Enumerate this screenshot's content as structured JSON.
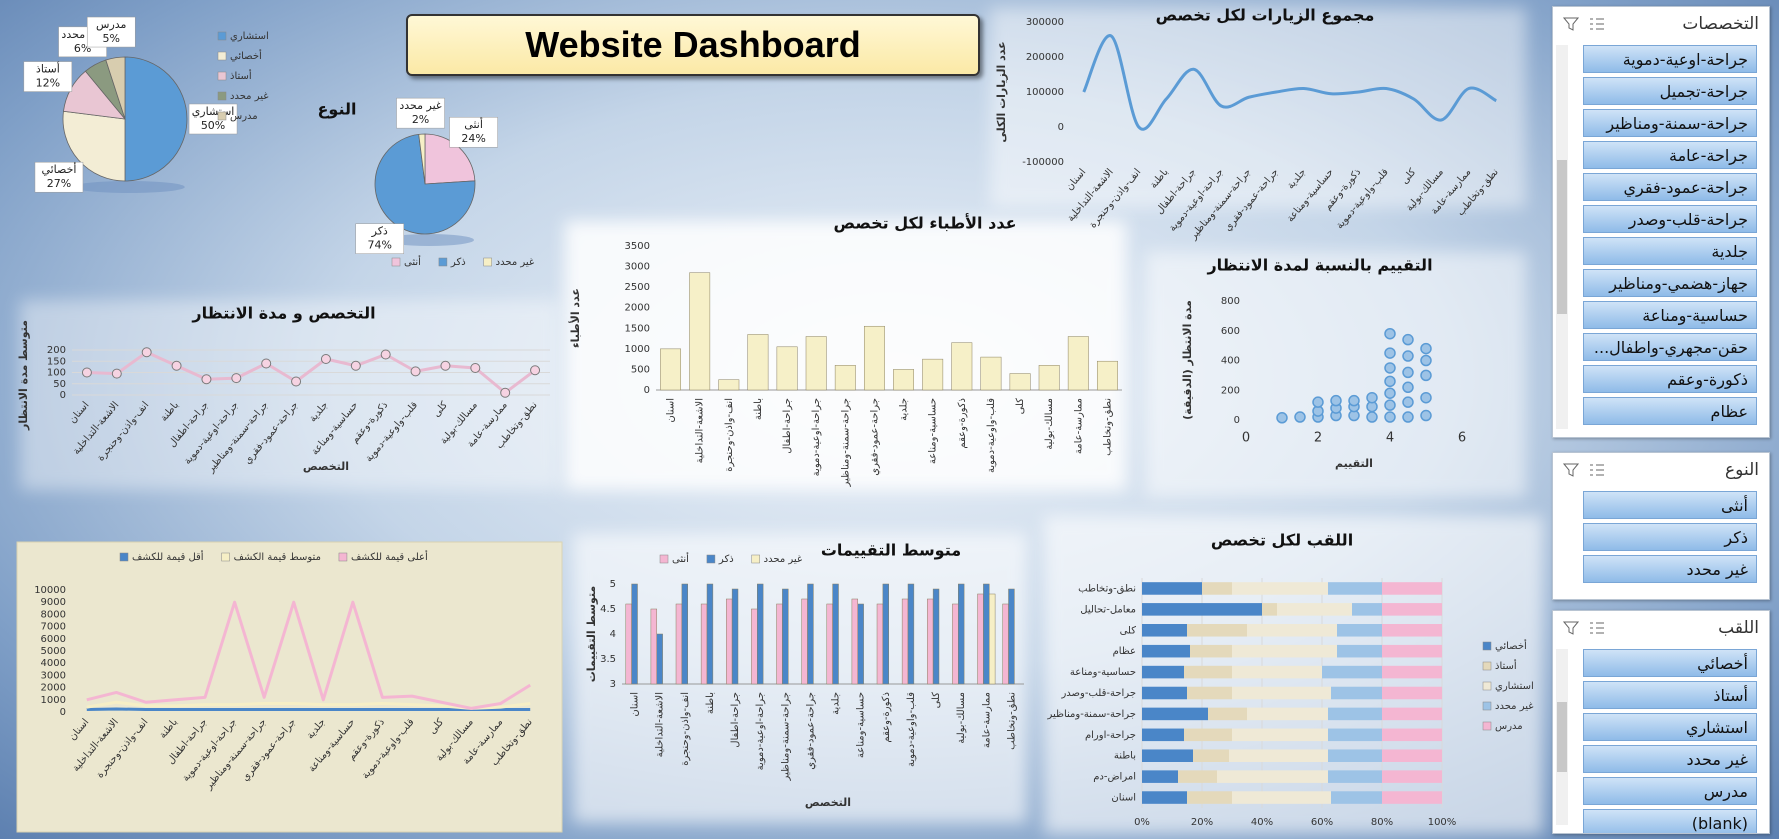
{
  "title": "Website Dashboard",
  "chart_data": [
    {
      "type": "pie",
      "categories": [
        "استشاري",
        "أخصائي",
        "أستاذ",
        "غير محدد",
        "مدرس"
      ],
      "values": [
        50,
        27,
        12,
        6,
        5
      ],
      "value_labels": [
        "50%",
        "27%",
        "12%",
        "6%",
        "5%"
      ],
      "colors": [
        "#5b9bd5",
        "#f3edd5",
        "#e9c6d3",
        "#8b9a80",
        "#d8cdaf"
      ],
      "legend": "right"
    },
    {
      "type": "pie",
      "title": "النوع",
      "categories": [
        "أنثى",
        "ذكر",
        "غير محدد"
      ],
      "values": [
        24,
        74,
        2
      ],
      "value_labels": [
        "24%",
        "74%",
        "2%"
      ],
      "colors": [
        "#f0c4dc",
        "#5b9bd5",
        "#f6efc6"
      ],
      "legend": "bottom"
    },
    {
      "type": "line",
      "title": "مجموع الزيارات لكل تخصص",
      "y_label": "عدد الزيارات الكلى",
      "smooth": true,
      "grid": false,
      "categories": [
        "اسنان",
        "الاشعة-التداخلية",
        "انف-واذن-وحنجرة",
        "باطنة",
        "جراحة-اطفال",
        "جراحة-اوعية-دموية",
        "جراحة-سمنة-ومناظير",
        "جراحة-عمود-فقري",
        "جلدية",
        "حساسية-ومناعة",
        "ذكورة-وعقم",
        "قلب-واوعية-دموية",
        "كلى",
        "مسالك-بولية",
        "ممارسة-عامة",
        "نطق-وتخاطب"
      ],
      "series": [
        {
          "name": "مجموع الزيارات",
          "color": "#5b9bd5",
          "values": [
            100000,
            260000,
            0,
            80000,
            165000,
            60000,
            85000,
            100000,
            110000,
            95000,
            100000,
            110000,
            80000,
            20000,
            110000,
            75000
          ]
        }
      ],
      "ylim": [
        -100000,
        300000
      ],
      "yticks": [
        -100000,
        0,
        100000,
        200000,
        300000
      ]
    },
    {
      "type": "bar",
      "title": "عدد الأطباء لكل تخصص",
      "y_label": "عدد الأطباء",
      "grid": false,
      "categories": [
        "اسنان",
        "الاشعة-التداخلية",
        "انف-واذن-وحنجرة",
        "باطنة",
        "جراحة-اطفال",
        "جراحة-اوعية-دموية",
        "جراحة-سمنة-ومناظير",
        "جراحة-عمود-فقري",
        "جلدية",
        "حساسية-ومناعة",
        "ذكورة-وعقم",
        "قلب-واوعية-دموية",
        "كلى",
        "مسالك-بولية",
        "ممارسة-عامة",
        "نطق-وتخاطب"
      ],
      "series": [
        {
          "name": "عدد الأطباء",
          "color": "#f6f0c8",
          "values": [
            1000,
            2850,
            250,
            1350,
            1050,
            1300,
            600,
            1550,
            500,
            750,
            1150,
            800,
            400,
            600,
            1300,
            700
          ]
        }
      ],
      "ylim": [
        0,
        3500
      ],
      "yticks": [
        0,
        500,
        1000,
        1500,
        2000,
        2500,
        3000,
        3500
      ]
    },
    {
      "type": "scatter",
      "title": "التقييم بالنسبة لمدة الانتظار",
      "x_label": "التقييم",
      "y_label": "مدة الانتظار (الدقيقة)",
      "grid": false,
      "series": [
        {
          "name": "مدة الانتظار",
          "color": "#9dc3e6",
          "x": [
            1,
            1.5,
            2,
            2,
            2,
            2.5,
            2.5,
            2.5,
            3,
            3,
            3,
            3.5,
            3.5,
            3.5,
            4,
            4,
            4,
            4,
            4,
            4,
            4,
            4.5,
            4.5,
            4.5,
            4.5,
            4.5,
            4.5,
            5,
            5,
            5,
            5,
            5
          ],
          "values": [
            15,
            20,
            20,
            60,
            120,
            30,
            80,
            130,
            30,
            90,
            130,
            20,
            90,
            150,
            20,
            100,
            180,
            260,
            350,
            450,
            580,
            20,
            120,
            220,
            320,
            430,
            540,
            30,
            150,
            300,
            400,
            480
          ]
        }
      ],
      "xlim": [
        0,
        6
      ],
      "xticks": [
        0,
        2,
        4,
        6
      ],
      "ylim": [
        0,
        800
      ],
      "yticks": [
        0,
        200,
        400,
        600,
        800
      ]
    },
    {
      "type": "line",
      "title": "التخصص و مدة الانتظار",
      "x_label": "التخصص",
      "y_label": "متوسط مدة الانتظار",
      "markers": true,
      "grid": true,
      "categories": [
        "اسنان",
        "الاشعة-التداخلية",
        "انف-واذن-وحنجرة",
        "باطنة",
        "جراحة-اطفال",
        "جراحة-اوعية-دموية",
        "جراحة-سمنة-ومناظير",
        "جراحة-عمود-فقري",
        "جلدية",
        "حساسية-ومناعة",
        "ذكورة-وعقم",
        "قلب-واوعية-دموية",
        "كلى",
        "مسالك-بولية",
        "ممارسة-عامة",
        "نطق-وتخاطب"
      ],
      "series": [
        {
          "name": "متوسط مدة الانتظار",
          "color": "#e8b9d0",
          "values": [
            100,
            95,
            190,
            130,
            70,
            75,
            140,
            60,
            160,
            130,
            180,
            105,
            130,
            120,
            10,
            110
          ]
        }
      ],
      "ylim": [
        0,
        200
      ],
      "yticks": [
        0,
        50,
        100,
        150,
        200
      ]
    },
    {
      "type": "line",
      "legend": "top",
      "grid": false,
      "categories": [
        "اسنان",
        "الاشعة-التداخلية",
        "انف-واذن-وحنجرة",
        "باطنة",
        "جراحة-اطفال",
        "جراحة-اوعية-دموية",
        "جراحة-سمنة-ومناظير",
        "جراحة-عمود-فقري",
        "جلدية",
        "حساسية-ومناعة",
        "ذكورة-وعقم",
        "قلب-واوعية-دموية",
        "كلى",
        "مسالك-بولية",
        "ممارسة-عامة",
        "نطق-وتخاطب"
      ],
      "series": [
        {
          "name": "أقل قيمة للكشف",
          "color": "#4a86c8",
          "values": [
            200,
            250,
            200,
            200,
            200,
            200,
            200,
            200,
            200,
            200,
            200,
            200,
            200,
            200,
            200,
            200
          ]
        },
        {
          "name": "متوسط قيمة الكشف",
          "color": "#f6efc6",
          "values": [
            400,
            800,
            500,
            500,
            600,
            600,
            700,
            700,
            600,
            600,
            700,
            600,
            500,
            300,
            400,
            700
          ]
        },
        {
          "name": "أعلى قيمة للكشف",
          "color": "#f4b6d2",
          "values": [
            1000,
            1600,
            800,
            1000,
            1200,
            9000,
            1200,
            9000,
            1000,
            9000,
            1200,
            1300,
            800,
            300,
            700,
            2200
          ]
        }
      ],
      "ylim": [
        0,
        10000
      ],
      "yticks": [
        0,
        1000,
        2000,
        3000,
        4000,
        5000,
        6000,
        7000,
        8000,
        9000,
        10000
      ]
    },
    {
      "type": "bar",
      "title": "متوسط التقييمات",
      "x_label": "التخصص",
      "y_label": "متوسط التقييمات",
      "legend": "top",
      "grid": false,
      "categories": [
        "اسنان",
        "الاشعة-التداخلية",
        "انف-واذن-وحنجرة",
        "باطنة",
        "جراحة-اطفال",
        "جراحة-اوعية-دموية",
        "جراحة-سمنة-ومناظير",
        "جراحة-عمود-فقري",
        "جلدية",
        "حساسية-ومناعة",
        "ذكورة-وعقم",
        "قلب-واوعية-دموية",
        "كلى",
        "مسالك-بولية",
        "ممارسة-عامة",
        "نطق-وتخاطب"
      ],
      "series": [
        {
          "name": "أنثى",
          "color": "#f4b6d2",
          "values": [
            4.6,
            4.5,
            4.6,
            4.6,
            4.7,
            4.5,
            4.6,
            4.7,
            4.6,
            4.7,
            4.6,
            4.7,
            4.7,
            4.6,
            4.8,
            4.6
          ]
        },
        {
          "name": "ذكر",
          "color": "#4a86c8",
          "values": [
            5,
            4,
            5,
            5,
            4.9,
            5,
            4.9,
            5,
            5,
            4.6,
            5,
            5,
            4.9,
            5,
            5,
            4.9
          ]
        },
        {
          "name": "غير محدد",
          "color": "#f6efc6",
          "values": [
            null,
            null,
            null,
            null,
            null,
            null,
            null,
            null,
            null,
            null,
            null,
            null,
            null,
            null,
            4.8,
            null
          ]
        }
      ],
      "ylim": [
        3,
        5
      ],
      "yticks": [
        3,
        3.5,
        4,
        4.5,
        5
      ]
    },
    {
      "type": "hbar",
      "stacked": true,
      "title": "اللقب لكل تخصص",
      "legend": "right",
      "grid": true,
      "categories": [
        "اسنان",
        "امراض-دم",
        "باطنة",
        "جراحة-اورام",
        "جراحة-سمنة-ومناظير",
        "جراحة-قلب-وصدر",
        "حساسية-ومناعة",
        "عظام",
        "كلى",
        "معامل-تحاليل",
        "نطق-وتخاطب"
      ],
      "series": [
        {
          "name": "أخصائي",
          "color": "#4a86c8",
          "values": [
            15,
            12,
            17,
            14,
            22,
            15,
            14,
            16,
            15,
            40,
            20
          ]
        },
        {
          "name": "أستاذ",
          "color": "#e4d9bb",
          "values": [
            15,
            13,
            12,
            16,
            13,
            15,
            16,
            14,
            20,
            5,
            10
          ]
        },
        {
          "name": "استشاري",
          "color": "#efe9d6",
          "values": [
            33,
            37,
            33,
            32,
            27,
            33,
            30,
            35,
            30,
            25,
            32
          ]
        },
        {
          "name": "غير محدد",
          "color": "#9dc3e6",
          "values": [
            17,
            18,
            18,
            18,
            18,
            17,
            20,
            15,
            15,
            10,
            18
          ]
        },
        {
          "name": "مدرس",
          "color": "#f4b6d2",
          "values": [
            20,
            20,
            20,
            20,
            20,
            20,
            20,
            20,
            20,
            20,
            20
          ]
        }
      ],
      "xlim": [
        0,
        100
      ],
      "xticks": [
        {
          "value": 0,
          "label": "0%"
        },
        {
          "value": 20,
          "label": "20%"
        },
        {
          "value": 40,
          "label": "40%"
        },
        {
          "value": 60,
          "label": "60%"
        },
        {
          "value": 80,
          "label": "80%"
        },
        {
          "value": 100,
          "label": "100%"
        }
      ]
    }
  ],
  "slicers": [
    {
      "title": "التخصصات",
      "items": [
        "جراحة-اوعية-دموية",
        "جراحة-تجميل",
        "جراحة-سمنة-ومناظير",
        "جراحة-عامة",
        "جراحة-عمود-فقري",
        "جراحة-قلب-وصدر",
        "جلدية",
        "جهاز-هضمي-ومناظير",
        "حساسية-ومناعة",
        "حقن-مجهري-واطفال...",
        "ذكورة-وعقم",
        "عظام"
      ]
    },
    {
      "title": "النوع",
      "items": [
        "أنثى",
        "ذكر",
        "غير محدد"
      ]
    },
    {
      "title": "اللقب",
      "items": [
        "أخصائي",
        "أستاذ",
        "استشاري",
        "غير محدد",
        "مدرس",
        "(blank)"
      ]
    }
  ]
}
